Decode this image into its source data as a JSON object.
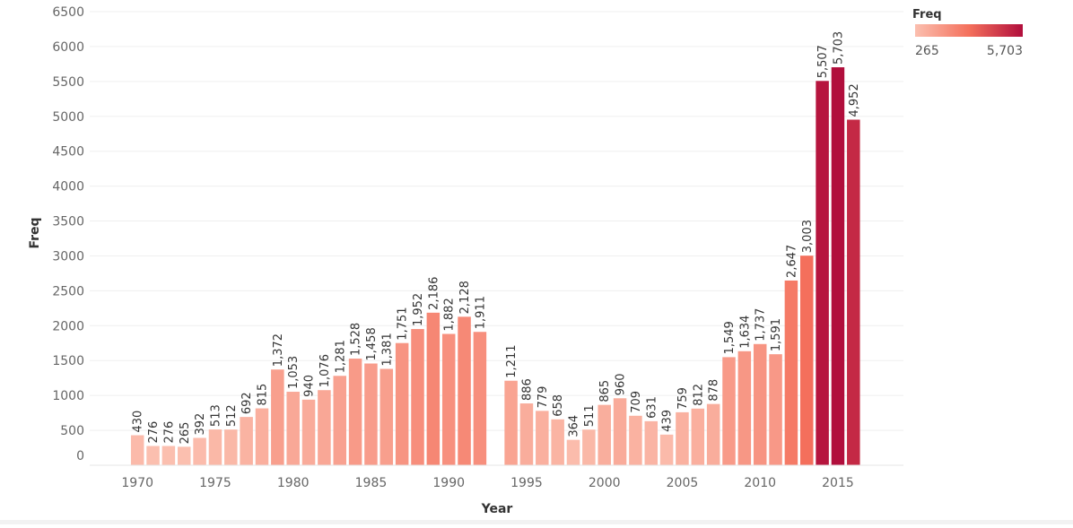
{
  "chart_data": {
    "type": "bar",
    "xlabel": "Year",
    "ylabel": "Freq",
    "ylim": [
      0,
      6500
    ],
    "y_ticks": [
      0,
      500,
      1000,
      1500,
      2000,
      2500,
      3000,
      3500,
      4000,
      4500,
      5000,
      5500,
      6000,
      6500
    ],
    "x_ticks": [
      1970,
      1975,
      1980,
      1985,
      1990,
      1995,
      2000,
      2005,
      2010,
      2015
    ],
    "grid": true,
    "categories": [
      1970,
      1971,
      1972,
      1973,
      1974,
      1975,
      1976,
      1977,
      1978,
      1979,
      1980,
      1981,
      1982,
      1983,
      1984,
      1985,
      1986,
      1987,
      1988,
      1989,
      1990,
      1991,
      1992,
      1994,
      1995,
      1996,
      1997,
      1998,
      1999,
      2000,
      2001,
      2002,
      2003,
      2004,
      2005,
      2006,
      2007,
      2008,
      2009,
      2010,
      2011,
      2012,
      2013,
      2014,
      2015,
      2016
    ],
    "values": [
      430,
      276,
      276,
      265,
      392,
      513,
      512,
      692,
      815,
      1372,
      1053,
      940,
      1076,
      1281,
      1528,
      1458,
      1381,
      1751,
      1952,
      2186,
      1882,
      2128,
      1911,
      1211,
      886,
      779,
      658,
      364,
      511,
      865,
      960,
      709,
      631,
      439,
      759,
      812,
      878,
      1549,
      1634,
      1737,
      1591,
      2647,
      3003,
      5507,
      5703,
      4952
    ],
    "labels": [
      "430",
      "276",
      "276",
      "265",
      "392",
      "513",
      "512",
      "692",
      "815",
      "1,372",
      "1,053",
      "940",
      "1,076",
      "1,281",
      "1,528",
      "1,458",
      "1,381",
      "1,751",
      "1,952",
      "2,186",
      "1,882",
      "2,128",
      "1,911",
      "1,211",
      "886",
      "779",
      "658",
      "364",
      "511",
      "865",
      "960",
      "709",
      "631",
      "439",
      "759",
      "812",
      "878",
      "1,549",
      "1,634",
      "1,737",
      "1,591",
      "2,647",
      "3,003",
      "5,507",
      "5,703",
      "4,952"
    ],
    "legend": {
      "title": "Freq",
      "position": "top-right",
      "min": 265,
      "max": 5703,
      "min_label": "265",
      "max_label": "5,703",
      "color_low": "#fbbfaf",
      "color_mid": "#f4705c",
      "color_high": "#b10e3c"
    }
  }
}
